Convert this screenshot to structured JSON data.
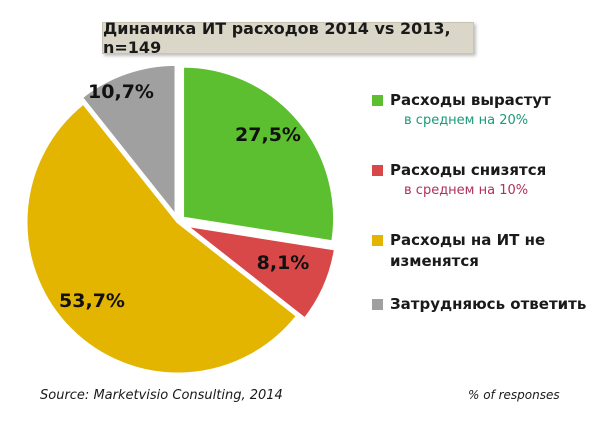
{
  "title": "Динамика ИТ расходов 2014 vs 2013, n=149",
  "chart_data": {
    "type": "pie",
    "title": "Динамика ИТ расходов 2014 vs 2013, n=149",
    "slices": [
      {
        "label": "Расходы вырастут",
        "sublabel": "в среднем на 20%",
        "value": 27.5,
        "value_label": "27,5%",
        "color": "#5cbf2f",
        "sub_color": "#1a9a7a"
      },
      {
        "label": "Расходы снизятся",
        "sublabel": "в среднем на 10%",
        "value": 8.1,
        "value_label": "8,1%",
        "color": "#d84848",
        "sub_color": "#b0305a"
      },
      {
        "label": "Расходы на ИТ не изменятся",
        "sublabel": "",
        "value": 53.7,
        "value_label": "53,7%",
        "color": "#e3b500",
        "sub_color": ""
      },
      {
        "label": "Затрудняюсь ответить",
        "sublabel": "",
        "value": 10.7,
        "value_label": "10,7%",
        "color": "#a0a0a0",
        "sub_color": ""
      }
    ],
    "legend_position": "right"
  },
  "footer": {
    "source": "Source: Marketvisio Consulting, 2014",
    "units": "% of responses"
  }
}
